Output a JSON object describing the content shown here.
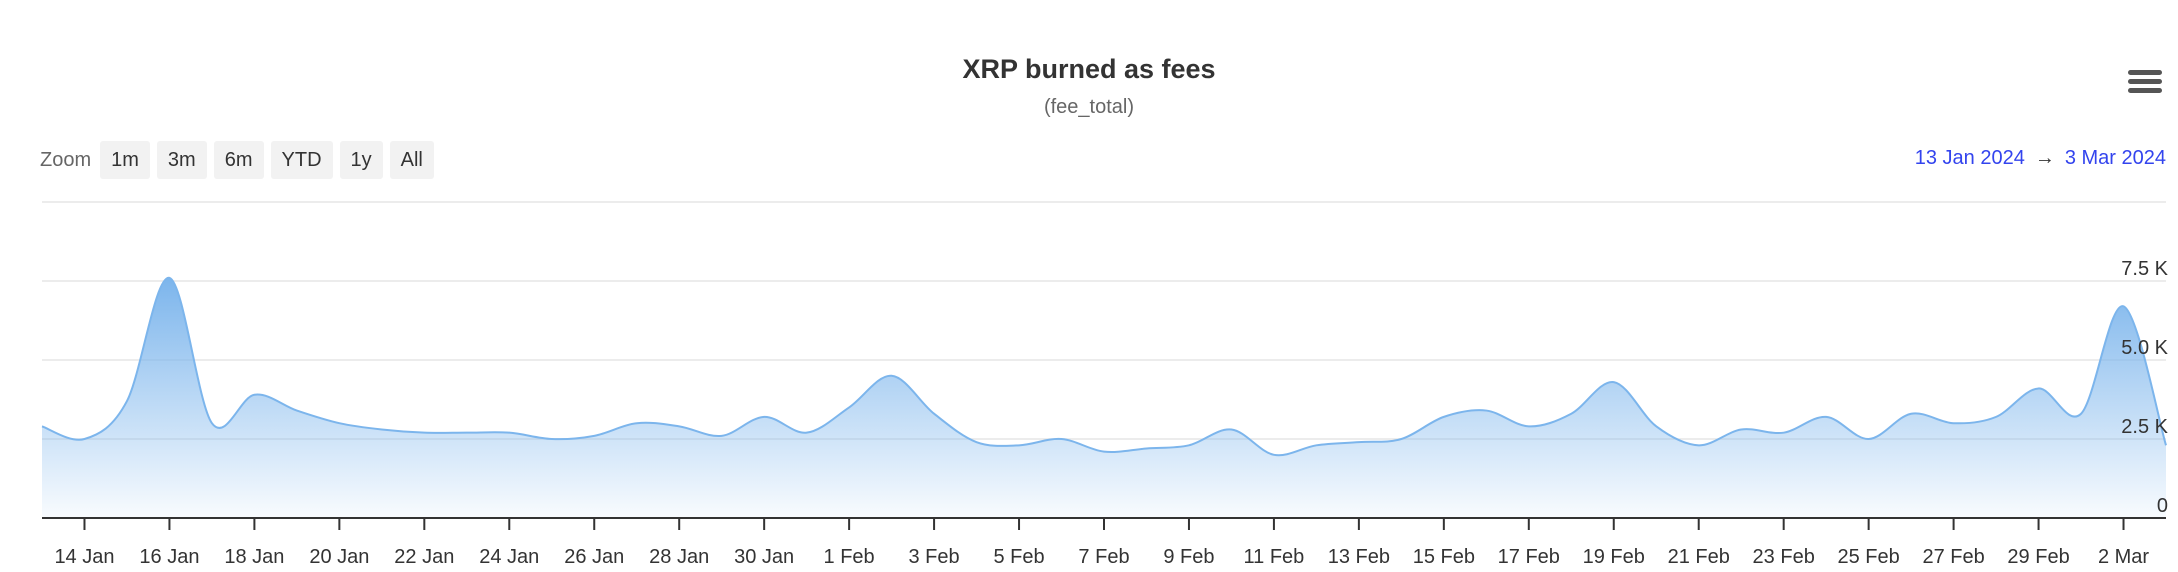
{
  "chart_data": {
    "type": "area",
    "title": "XRP burned as fees",
    "subtitle": "(fee_total)",
    "x_tick_labels": [
      "14 Jan",
      "16 Jan",
      "18 Jan",
      "20 Jan",
      "22 Jan",
      "24 Jan",
      "26 Jan",
      "28 Jan",
      "30 Jan",
      "1 Feb",
      "3 Feb",
      "5 Feb",
      "7 Feb",
      "9 Feb",
      "11 Feb",
      "13 Feb",
      "15 Feb",
      "17 Feb",
      "19 Feb",
      "21 Feb",
      "23 Feb",
      "25 Feb",
      "27 Feb",
      "29 Feb",
      "2 Mar"
    ],
    "y_ticks": [
      0,
      2500,
      5000,
      7500
    ],
    "y_tick_labels": [
      "0",
      "2.5 K",
      "5.0 K",
      "7.5 K"
    ],
    "ylim": [
      0,
      10000
    ],
    "xlim": [
      "2024-01-13",
      "2024-03-03"
    ],
    "grid": true,
    "x": [
      "2024-01-13",
      "2024-01-14",
      "2024-01-15",
      "2024-01-16",
      "2024-01-17",
      "2024-01-18",
      "2024-01-19",
      "2024-01-20",
      "2024-01-21",
      "2024-01-22",
      "2024-01-23",
      "2024-01-24",
      "2024-01-25",
      "2024-01-26",
      "2024-01-27",
      "2024-01-28",
      "2024-01-29",
      "2024-01-30",
      "2024-01-31",
      "2024-02-01",
      "2024-02-02",
      "2024-02-03",
      "2024-02-04",
      "2024-02-05",
      "2024-02-06",
      "2024-02-07",
      "2024-02-08",
      "2024-02-09",
      "2024-02-10",
      "2024-02-11",
      "2024-02-12",
      "2024-02-13",
      "2024-02-14",
      "2024-02-15",
      "2024-02-16",
      "2024-02-17",
      "2024-02-18",
      "2024-02-19",
      "2024-02-20",
      "2024-02-21",
      "2024-02-22",
      "2024-02-23",
      "2024-02-24",
      "2024-02-25",
      "2024-02-26",
      "2024-02-27",
      "2024-02-28",
      "2024-02-29",
      "2024-03-01",
      "2024-03-02",
      "2024-03-03"
    ],
    "series": [
      {
        "color": "#7cb5ec",
        "values": [
          2900,
          2500,
          3700,
          7600,
          3000,
          3900,
          3400,
          3000,
          2800,
          2700,
          2700,
          2700,
          2500,
          2600,
          3000,
          2900,
          2600,
          3200,
          2700,
          3500,
          4500,
          3300,
          2400,
          2300,
          2500,
          2100,
          2200,
          2300,
          2800,
          2000,
          2300,
          2400,
          2500,
          3200,
          3400,
          2900,
          3300,
          4300,
          2900,
          2300,
          2800,
          2700,
          3200,
          2500,
          3300,
          3000,
          3200,
          4100,
          3300,
          6700,
          2300
        ]
      }
    ]
  },
  "zoom": {
    "label": "Zoom",
    "buttons": [
      "1m",
      "3m",
      "6m",
      "YTD",
      "1y",
      "All"
    ]
  },
  "range": {
    "from": "13 Jan 2024",
    "arrow": "→",
    "to": "3 Mar 2024"
  },
  "menu": {
    "icon": "hamburger-menu-icon"
  }
}
